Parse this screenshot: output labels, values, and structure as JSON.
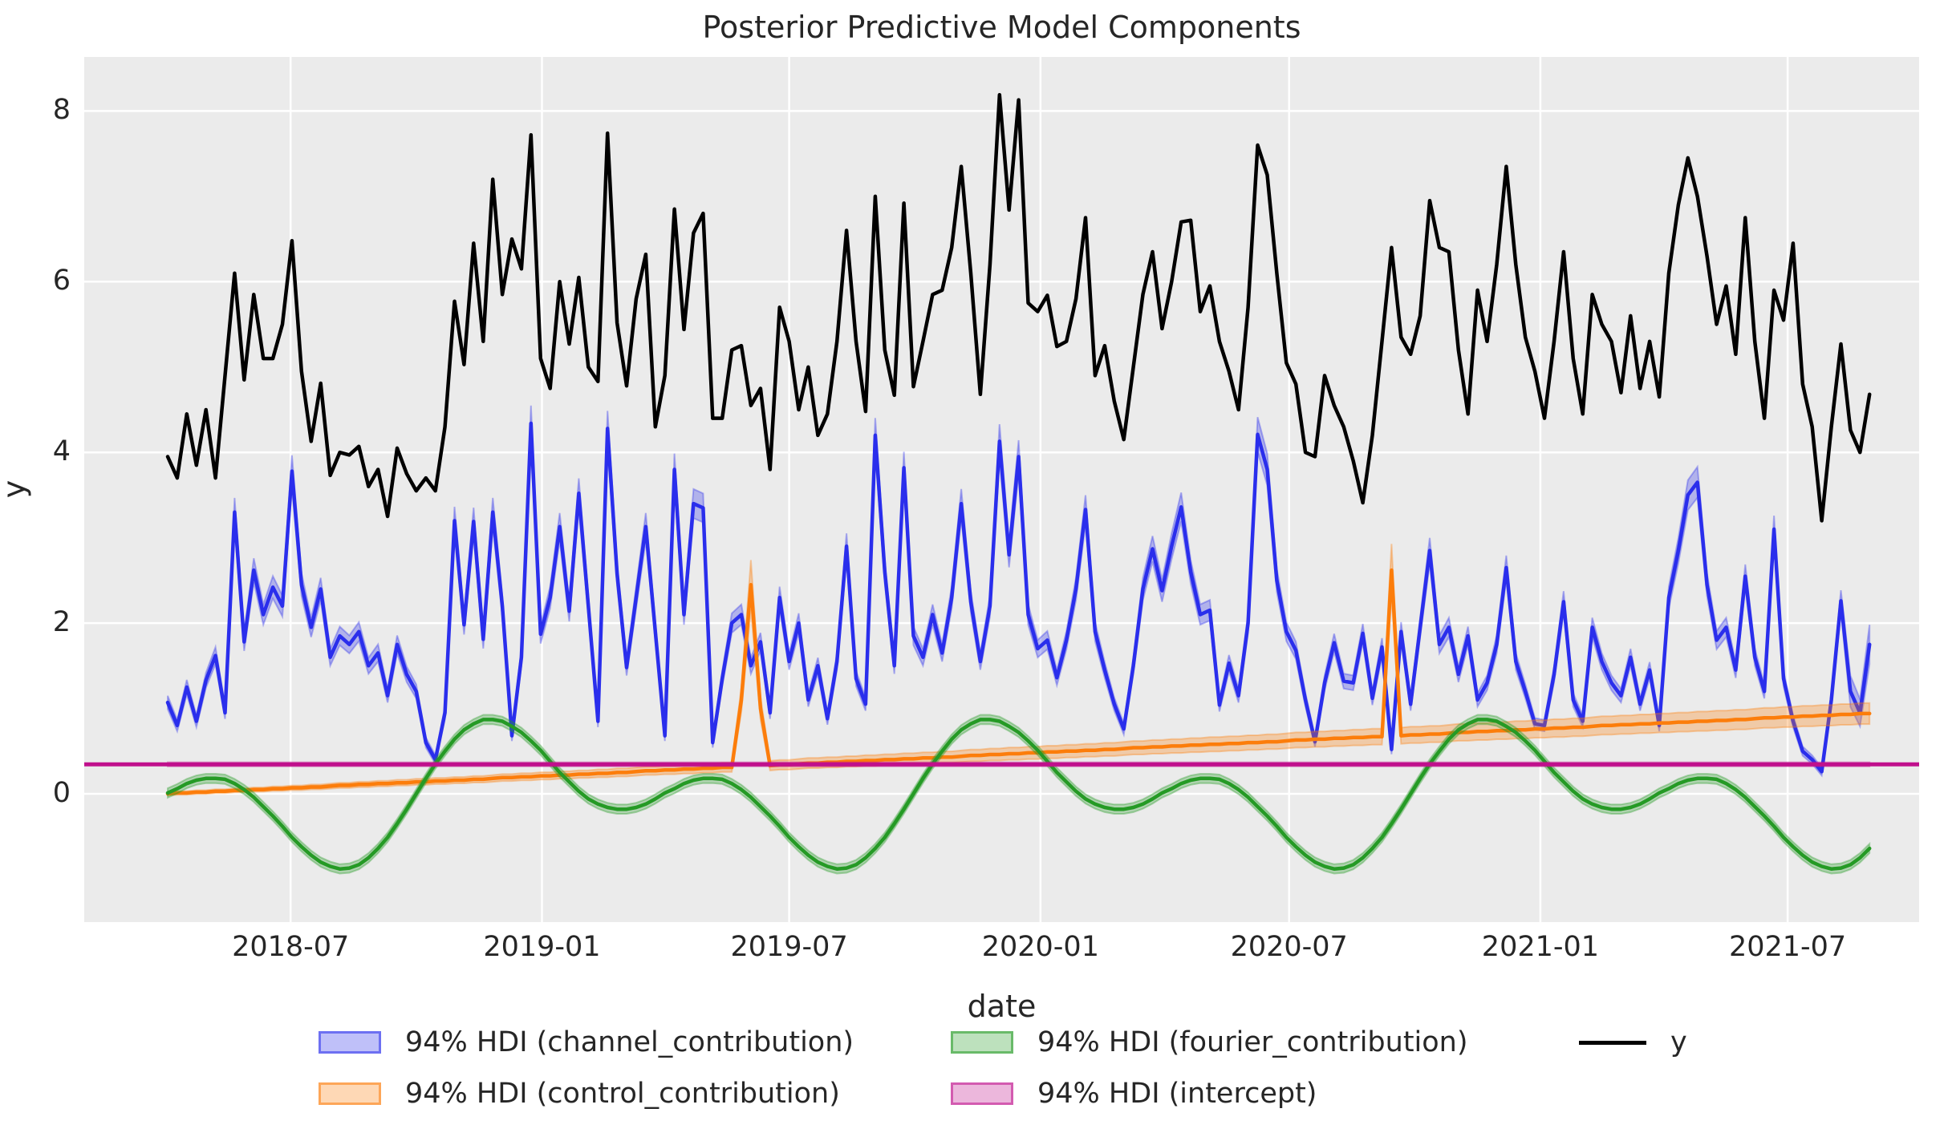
{
  "title": "Posterior Predictive Model Components",
  "axes": {
    "xlabel": "date",
    "ylabel": "y",
    "y_ticks": [
      "0",
      "2",
      "4",
      "6",
      "8"
    ],
    "y_tick_values": [
      0,
      2,
      4,
      6,
      8
    ],
    "x_ticks": [
      {
        "label": "2018-07",
        "week": 12.857
      },
      {
        "label": "2019-01",
        "week": 39.143
      },
      {
        "label": "2019-07",
        "week": 65.0
      },
      {
        "label": "2020-01",
        "week": 91.286
      },
      {
        "label": "2020-07",
        "week": 117.286
      },
      {
        "label": "2021-01",
        "week": 143.571
      },
      {
        "label": "2021-07",
        "week": 169.429
      }
    ],
    "ylim": [
      -1.5,
      8.64
    ],
    "grid": true
  },
  "legend": {
    "items": [
      {
        "id": "channel",
        "label": "94% HDI (channel_contribution)",
        "swatch": "patch",
        "color": "#2a2eec"
      },
      {
        "id": "control",
        "label": "94% HDI (control_contribution)",
        "swatch": "patch",
        "color": "#fc7d0b"
      },
      {
        "id": "fourier",
        "label": "94% HDI (fourier_contribution)",
        "swatch": "patch",
        "color": "#259a25"
      },
      {
        "id": "intercept",
        "label": "94% HDI (intercept)",
        "swatch": "patch",
        "color": "#c0108c"
      },
      {
        "id": "y",
        "label": "y",
        "swatch": "line",
        "color": "#000000"
      }
    ]
  },
  "chart_data": {
    "type": "line",
    "x": {
      "start_date": "2018-04-02",
      "interval_days": 7,
      "n_points": 179
    },
    "series": [
      {
        "id": "channel",
        "name": "channel_contribution",
        "kind": "line_hdi",
        "color": "#2a2eec",
        "hdi": {
          "base": 0.035,
          "scale": 0.04,
          "last3_factor": 2.2
        },
        "values": [
          1.07,
          0.8,
          1.25,
          0.85,
          1.33,
          1.62,
          0.95,
          3.3,
          1.78,
          2.62,
          2.1,
          2.42,
          2.2,
          3.78,
          2.45,
          1.95,
          2.4,
          1.6,
          1.85,
          1.75,
          1.9,
          1.5,
          1.65,
          1.15,
          1.75,
          1.4,
          1.2,
          0.6,
          0.4,
          0.95,
          3.2,
          1.98,
          3.19,
          1.81,
          3.3,
          2.2,
          0.68,
          1.6,
          4.34,
          1.87,
          2.3,
          3.13,
          2.14,
          3.52,
          2.2,
          0.85,
          4.28,
          2.58,
          1.48,
          2.3,
          3.13,
          1.9,
          0.68,
          3.8,
          2.1,
          3.4,
          3.35,
          0.6,
          1.35,
          2.0,
          2.1,
          1.5,
          1.78,
          0.95,
          2.3,
          1.55,
          2.0,
          1.1,
          1.5,
          0.88,
          1.55,
          2.9,
          1.35,
          1.05,
          4.2,
          2.6,
          1.5,
          3.82,
          1.85,
          1.6,
          2.1,
          1.65,
          2.3,
          3.4,
          2.25,
          1.55,
          2.2,
          4.13,
          2.8,
          3.95,
          2.1,
          1.7,
          1.8,
          1.36,
          1.8,
          2.4,
          3.33,
          1.9,
          1.45,
          1.05,
          0.76,
          1.5,
          2.4,
          2.87,
          2.38,
          2.9,
          3.36,
          2.6,
          2.1,
          2.15,
          1.04,
          1.53,
          1.15,
          2.0,
          4.21,
          3.8,
          2.5,
          1.9,
          1.68,
          1.1,
          0.61,
          1.3,
          1.77,
          1.32,
          1.3,
          1.88,
          1.12,
          1.72,
          0.52,
          1.9,
          1.05,
          1.95,
          2.85,
          1.75,
          1.95,
          1.4,
          1.85,
          1.1,
          1.3,
          1.75,
          2.65,
          1.55,
          1.2,
          0.82,
          0.8,
          1.4,
          2.25,
          1.1,
          0.85,
          1.95,
          1.55,
          1.3,
          1.15,
          1.6,
          1.05,
          1.45,
          0.8,
          2.3,
          2.85,
          3.5,
          3.65,
          2.45,
          1.8,
          1.95,
          1.45,
          2.55,
          1.6,
          1.2,
          3.1,
          1.35,
          0.85,
          0.5,
          0.4,
          0.26,
          1.1,
          2.26,
          1.2,
          0.95,
          1.75
        ]
      },
      {
        "id": "control",
        "name": "control_contribution",
        "kind": "line_hdi",
        "color": "#fc7d0b",
        "hdi": {
          "base": 0.02,
          "scale": 0.11
        },
        "values": [
          0.0,
          0.01,
          0.01,
          0.02,
          0.02,
          0.03,
          0.03,
          0.04,
          0.04,
          0.05,
          0.05,
          0.06,
          0.06,
          0.07,
          0.07,
          0.08,
          0.08,
          0.09,
          0.1,
          0.1,
          0.11,
          0.11,
          0.12,
          0.12,
          0.13,
          0.13,
          0.14,
          0.14,
          0.15,
          0.15,
          0.16,
          0.16,
          0.17,
          0.17,
          0.18,
          0.19,
          0.19,
          0.2,
          0.2,
          0.21,
          0.21,
          0.22,
          0.22,
          0.23,
          0.23,
          0.24,
          0.24,
          0.25,
          0.25,
          0.26,
          0.27,
          0.27,
          0.28,
          0.28,
          0.29,
          0.29,
          0.3,
          0.3,
          0.31,
          0.31,
          1.1,
          2.45,
          1.0,
          0.33,
          0.34,
          0.34,
          0.35,
          0.36,
          0.36,
          0.37,
          0.37,
          0.38,
          0.38,
          0.39,
          0.39,
          0.4,
          0.4,
          0.41,
          0.41,
          0.42,
          0.42,
          0.43,
          0.43,
          0.44,
          0.45,
          0.45,
          0.46,
          0.46,
          0.47,
          0.47,
          0.48,
          0.48,
          0.49,
          0.49,
          0.5,
          0.5,
          0.51,
          0.51,
          0.52,
          0.52,
          0.53,
          0.54,
          0.54,
          0.55,
          0.55,
          0.56,
          0.56,
          0.57,
          0.57,
          0.58,
          0.58,
          0.59,
          0.59,
          0.6,
          0.6,
          0.61,
          0.61,
          0.62,
          0.63,
          0.63,
          0.64,
          0.64,
          0.65,
          0.65,
          0.66,
          0.66,
          0.67,
          0.67,
          2.62,
          0.68,
          0.69,
          0.69,
          0.7,
          0.7,
          0.71,
          0.72,
          0.72,
          0.73,
          0.73,
          0.74,
          0.74,
          0.75,
          0.75,
          0.76,
          0.76,
          0.77,
          0.77,
          0.78,
          0.78,
          0.79,
          0.8,
          0.8,
          0.81,
          0.81,
          0.82,
          0.82,
          0.83,
          0.83,
          0.84,
          0.84,
          0.85,
          0.85,
          0.86,
          0.86,
          0.87,
          0.87,
          0.88,
          0.89,
          0.89,
          0.9,
          0.9,
          0.91,
          0.91,
          0.92,
          0.92,
          0.93,
          0.93,
          0.94,
          0.94
        ]
      },
      {
        "id": "fourier",
        "name": "fourier_contribution",
        "kind": "line_hdi",
        "color": "#259a25",
        "hdi": {
          "base": 0.055,
          "scale": 0
        },
        "values": [
          0.01,
          0.06,
          0.12,
          0.16,
          0.18,
          0.18,
          0.17,
          0.12,
          0.05,
          -0.04,
          -0.15,
          -0.26,
          -0.38,
          -0.51,
          -0.62,
          -0.72,
          -0.8,
          -0.85,
          -0.88,
          -0.87,
          -0.83,
          -0.75,
          -0.64,
          -0.51,
          -0.35,
          -0.18,
          0.0,
          0.18,
          0.35,
          0.5,
          0.64,
          0.75,
          0.82,
          0.87,
          0.87,
          0.85,
          0.79,
          0.72,
          0.62,
          0.51,
          0.38,
          0.25,
          0.14,
          0.03,
          -0.06,
          -0.12,
          -0.16,
          -0.18,
          -0.18,
          -0.16,
          -0.12,
          -0.06,
          0.01,
          0.06,
          0.12,
          0.16,
          0.18,
          0.18,
          0.17,
          0.12,
          0.05,
          -0.04,
          -0.15,
          -0.26,
          -0.38,
          -0.51,
          -0.62,
          -0.72,
          -0.8,
          -0.85,
          -0.88,
          -0.87,
          -0.83,
          -0.75,
          -0.64,
          -0.51,
          -0.35,
          -0.18,
          0.0,
          0.18,
          0.35,
          0.5,
          0.64,
          0.75,
          0.82,
          0.87,
          0.87,
          0.85,
          0.79,
          0.72,
          0.62,
          0.51,
          0.38,
          0.25,
          0.14,
          0.03,
          -0.06,
          -0.12,
          -0.16,
          -0.18,
          -0.18,
          -0.16,
          -0.12,
          -0.06,
          0.01,
          0.06,
          0.12,
          0.16,
          0.18,
          0.18,
          0.17,
          0.12,
          0.05,
          -0.04,
          -0.15,
          -0.26,
          -0.38,
          -0.51,
          -0.62,
          -0.72,
          -0.8,
          -0.85,
          -0.88,
          -0.87,
          -0.83,
          -0.75,
          -0.64,
          -0.51,
          -0.35,
          -0.18,
          0.0,
          0.18,
          0.35,
          0.5,
          0.64,
          0.75,
          0.82,
          0.87,
          0.87,
          0.85,
          0.79,
          0.72,
          0.62,
          0.51,
          0.38,
          0.25,
          0.14,
          0.03,
          -0.06,
          -0.12,
          -0.16,
          -0.18,
          -0.18,
          -0.16,
          -0.12,
          -0.06,
          0.01,
          0.06,
          0.12,
          0.16,
          0.18,
          0.18,
          0.17,
          0.12,
          0.05,
          -0.04,
          -0.15,
          -0.26,
          -0.38,
          -0.51,
          -0.62,
          -0.72,
          -0.8,
          -0.85,
          -0.88,
          -0.87,
          -0.83,
          -0.75,
          -0.64
        ]
      },
      {
        "id": "intercept",
        "name": "intercept",
        "kind": "hline_hdi",
        "color": "#c0108c",
        "hdi": {
          "base": 0.025,
          "scale": 0
        },
        "value": 0.345
      },
      {
        "id": "y",
        "name": "y",
        "kind": "line",
        "color": "#000000",
        "values": [
          3.95,
          3.7,
          4.45,
          3.85,
          4.5,
          3.7,
          4.9,
          6.1,
          4.85,
          5.85,
          5.1,
          5.1,
          5.5,
          6.48,
          4.95,
          4.13,
          4.81,
          3.73,
          4.0,
          3.97,
          4.07,
          3.6,
          3.8,
          3.25,
          4.05,
          3.75,
          3.55,
          3.7,
          3.55,
          4.3,
          5.77,
          5.03,
          6.45,
          5.3,
          7.2,
          5.85,
          6.5,
          6.15,
          7.72,
          5.1,
          4.75,
          6.0,
          5.27,
          6.05,
          5.0,
          4.83,
          7.74,
          5.52,
          4.78,
          5.8,
          6.32,
          4.3,
          4.9,
          6.85,
          5.44,
          6.57,
          6.8,
          4.4,
          4.4,
          5.2,
          5.25,
          4.55,
          4.75,
          3.8,
          5.7,
          5.3,
          4.5,
          5.0,
          4.2,
          4.45,
          5.3,
          6.6,
          5.3,
          4.48,
          7.0,
          5.2,
          4.67,
          6.92,
          4.77,
          5.3,
          5.85,
          5.9,
          6.4,
          7.35,
          6.1,
          4.68,
          6.2,
          8.19,
          6.84,
          8.13,
          5.75,
          5.65,
          5.84,
          5.24,
          5.3,
          5.8,
          6.75,
          4.9,
          5.25,
          4.6,
          4.15,
          5.0,
          5.85,
          6.35,
          5.45,
          6.0,
          6.7,
          6.72,
          5.65,
          5.95,
          5.3,
          4.95,
          4.5,
          5.7,
          7.6,
          7.25,
          6.1,
          5.05,
          4.8,
          4.0,
          3.95,
          4.9,
          4.55,
          4.3,
          3.9,
          3.41,
          4.2,
          5.3,
          6.4,
          5.35,
          5.15,
          5.6,
          6.95,
          6.4,
          6.35,
          5.2,
          4.45,
          5.9,
          5.3,
          6.2,
          7.35,
          6.2,
          5.35,
          4.95,
          4.4,
          5.3,
          6.35,
          5.1,
          4.45,
          5.85,
          5.5,
          5.3,
          4.7,
          5.6,
          4.75,
          5.3,
          4.65,
          6.1,
          6.9,
          7.45,
          7.0,
          6.3,
          5.5,
          5.95,
          5.15,
          6.75,
          5.3,
          4.4,
          5.9,
          5.55,
          6.45,
          4.8,
          4.3,
          3.2,
          4.3,
          5.27,
          4.26,
          4.0,
          4.68
        ]
      }
    ]
  },
  "style": {
    "figure_bg": "#ffffff",
    "plot_bg": "#ebebeb",
    "grid_color": "#ffffff",
    "text_color": "#262626",
    "band_opacity": 0.3
  }
}
